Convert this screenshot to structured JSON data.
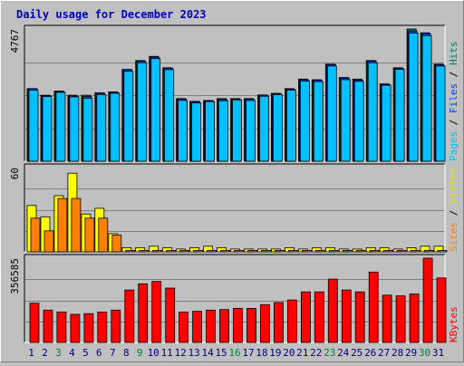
{
  "chart_data": {
    "type": "bar",
    "title": "Daily usage for December 2023",
    "categories": [
      "1",
      "2",
      "3",
      "4",
      "5",
      "6",
      "7",
      "8",
      "9",
      "10",
      "11",
      "12",
      "13",
      "14",
      "15",
      "16",
      "17",
      "18",
      "19",
      "20",
      "21",
      "22",
      "23",
      "24",
      "25",
      "26",
      "27",
      "28",
      "29",
      "30",
      "31"
    ],
    "weekend_days": [
      "3",
      "9",
      "16",
      "23",
      "30"
    ],
    "weekend_day_color": "#008040",
    "weekday_color": "#000080",
    "grid": true,
    "panels": [
      {
        "id": "hits-files-pages",
        "axis_max_label": "4767",
        "ylim": [
          0,
          4767
        ],
        "right_label": [
          {
            "text": "Pages",
            "color": "#00c0ff"
          },
          {
            "text": " / ",
            "color": "#000000"
          },
          {
            "text": "Files",
            "color": "#0040ff"
          },
          {
            "text": " / ",
            "color": "#000000"
          },
          {
            "text": "Hits",
            "color": "#00805c"
          }
        ],
        "series": [
          {
            "name": "Hits",
            "color": "#00805c",
            "values": [
              2620,
              2380,
              2530,
              2380,
              2380,
              2470,
              2500,
              3310,
              3630,
              3780,
              3370,
              2260,
              2160,
              2190,
              2260,
              2260,
              2260,
              2390,
              2450,
              2620,
              2960,
              2940,
              3500,
              3020,
              2960,
              3630,
              2790,
              3370,
              4767,
              4630,
              3500
            ]
          },
          {
            "name": "Files",
            "color": "#0040ff",
            "values": [
              2620,
              2360,
              2510,
              2350,
              2330,
              2450,
              2480,
              3300,
              3600,
              3750,
              3350,
              2240,
              2150,
              2170,
              2230,
              2230,
              2240,
              2380,
              2430,
              2600,
              2940,
              2920,
              3480,
              3000,
              2930,
              3610,
              2770,
              3350,
              4700,
              4600,
              3480
            ]
          },
          {
            "name": "Pages",
            "color": "#00c0ff",
            "values": [
              2560,
              2330,
              2480,
              2320,
              2270,
              2400,
              2450,
              3240,
              3550,
              3700,
              3300,
              2190,
              2100,
              2150,
              2180,
              2210,
              2190,
              2340,
              2400,
              2560,
              2890,
              2870,
              3430,
              2940,
              2880,
              3550,
              2740,
              3310,
              4620,
              4530,
              3430
            ]
          }
        ]
      },
      {
        "id": "visits-sites",
        "axis_max_label": "60",
        "ylim": [
          0,
          60
        ],
        "right_label": [
          {
            "text": "Sites",
            "color": "#ff8000"
          },
          {
            "text": " / ",
            "color": "#000000"
          },
          {
            "text": "Visits",
            "color": "#e0e000"
          }
        ],
        "series": [
          {
            "name": "Visits",
            "color": "#ffff00",
            "values": [
              33,
              25,
              40,
              56,
              27,
              31,
              13,
              3,
              3,
              4,
              3,
              2,
              3,
              4,
              3,
              2,
              2,
              2,
              2,
              3,
              2,
              3,
              3,
              2,
              2,
              3,
              3,
              2,
              3,
              4,
              4
            ]
          },
          {
            "name": "Sites",
            "color": "#ff8000",
            "values": [
              24,
              15,
              38,
              38,
              24,
              24,
              12,
              1,
              1,
              1,
              1,
              1,
              1,
              1,
              1,
              1,
              1,
              1,
              1,
              1,
              1,
              1,
              1,
              1,
              1,
              1,
              1,
              1,
              1,
              1,
              1
            ]
          }
        ]
      },
      {
        "id": "kbytes",
        "axis_max_label": "356585",
        "ylim": [
          0,
          356585
        ],
        "right_label": [
          {
            "text": "KBytes",
            "color": "#ff0000"
          }
        ],
        "series": [
          {
            "name": "KBytes",
            "color": "#ff0000",
            "values": [
              166000,
              137000,
              129000,
              119000,
              122000,
              129000,
              137000,
              222000,
              248000,
              258000,
              230000,
              129000,
              132000,
              137000,
              139000,
              144000,
              144000,
              160000,
              169000,
              180000,
              214000,
              214000,
              268000,
              222000,
              214000,
              298000,
              200000,
              197000,
              205000,
              356585,
              273000
            ]
          }
        ]
      }
    ]
  }
}
